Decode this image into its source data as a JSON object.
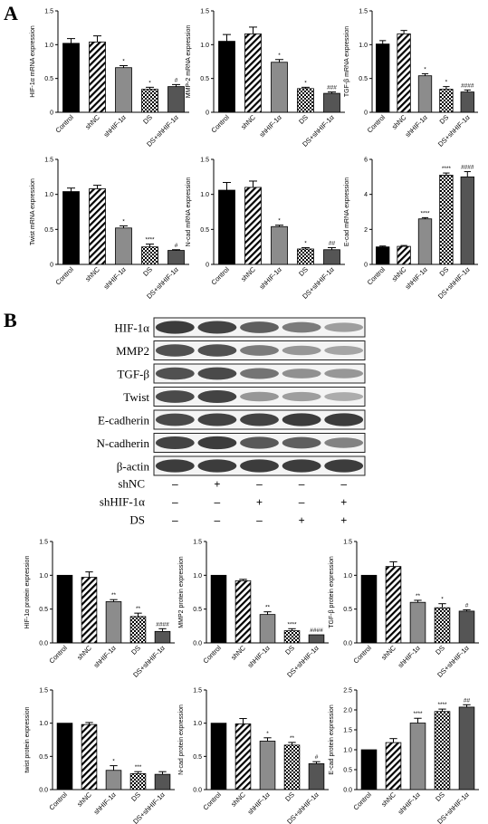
{
  "panels": {
    "a": "A",
    "b": "B"
  },
  "condition_labels": [
    "Control",
    "shNC",
    "shHIF-1α",
    "DS",
    "DS+shHIF-1α"
  ],
  "colors": {
    "control": "#000000",
    "shHIF": "#8c8c8c",
    "combo": "#555555",
    "grid": "#000000"
  },
  "western": {
    "bands": [
      "HIF-1α",
      "MMP2",
      "TGF-β",
      "Twist",
      "E-cadherin",
      "N-cadherin",
      "β-actin"
    ],
    "treatments": [
      {
        "name": "shNC",
        "marks": [
          "–",
          "+",
          "–",
          "–",
          "–"
        ]
      },
      {
        "name": "shHIF-1α",
        "marks": [
          "–",
          "–",
          "+",
          "–",
          "+"
        ]
      },
      {
        "name": "DS",
        "marks": [
          "–",
          "–",
          "–",
          "+",
          "+"
        ]
      }
    ]
  },
  "chart_data": [
    {
      "type": "bar",
      "ylabel": "HIF-1α mRNA expression",
      "ylim": [
        0,
        1.5
      ],
      "yticks": [
        0,
        0.5,
        1.0,
        1.5
      ],
      "categories": [
        "Control",
        "shNC",
        "shHIF-1α",
        "DS",
        "DS+shHIF-1α"
      ],
      "values": [
        1.02,
        1.04,
        0.66,
        0.34,
        0.38
      ],
      "errors": [
        0.07,
        0.09,
        0.03,
        0.03,
        0.03
      ],
      "annotations": [
        "",
        "",
        "*",
        "*",
        "#"
      ]
    },
    {
      "type": "bar",
      "ylabel": "MMP-2 mRNA expression",
      "ylim": [
        0,
        1.5
      ],
      "yticks": [
        0,
        0.5,
        1.0,
        1.5
      ],
      "categories": [
        "Control",
        "shNC",
        "shHIF-1α",
        "DS",
        "DS+shHIF-1α"
      ],
      "values": [
        1.05,
        1.16,
        0.74,
        0.35,
        0.28
      ],
      "errors": [
        0.1,
        0.1,
        0.04,
        0.02,
        0.02
      ],
      "annotations": [
        "",
        "",
        "*",
        "*",
        "###"
      ]
    },
    {
      "type": "bar",
      "ylabel": "TGF-β mRNA expression",
      "ylim": [
        0,
        1.5
      ],
      "yticks": [
        0,
        0.5,
        1.0,
        1.5
      ],
      "categories": [
        "Control",
        "shNC",
        "shHIF-1α",
        "DS",
        "DS+shHIF-1α"
      ],
      "values": [
        1.01,
        1.16,
        0.54,
        0.34,
        0.3
      ],
      "errors": [
        0.05,
        0.05,
        0.03,
        0.04,
        0.03
      ],
      "annotations": [
        "",
        "",
        "*",
        "*",
        "####"
      ]
    },
    {
      "type": "bar",
      "ylabel": "Twist mRNA expression",
      "ylim": [
        0,
        1.5
      ],
      "yticks": [
        0,
        0.5,
        1.0,
        1.5
      ],
      "categories": [
        "Control",
        "shNC",
        "shHIF-1α",
        "DS",
        "DS+shHIF-1α"
      ],
      "values": [
        1.04,
        1.08,
        0.52,
        0.25,
        0.2
      ],
      "errors": [
        0.05,
        0.05,
        0.03,
        0.04,
        0.01
      ],
      "annotations": [
        "",
        "",
        "*",
        "****",
        "#"
      ]
    },
    {
      "type": "bar",
      "ylabel": "N-cad mRNA expression",
      "ylim": [
        0,
        1.5
      ],
      "yticks": [
        0,
        0.5,
        1.0,
        1.5
      ],
      "categories": [
        "Control",
        "shNC",
        "shHIF-1α",
        "DS",
        "DS+shHIF-1α"
      ],
      "values": [
        1.06,
        1.1,
        0.54,
        0.22,
        0.21
      ],
      "errors": [
        0.11,
        0.09,
        0.02,
        0.02,
        0.03
      ],
      "annotations": [
        "",
        "",
        "*",
        "*",
        "##"
      ]
    },
    {
      "type": "bar",
      "ylabel": "E-cad mRNA expression",
      "ylim": [
        0,
        6
      ],
      "yticks": [
        0,
        2,
        4,
        6
      ],
      "categories": [
        "Control",
        "shNC",
        "shHIF-1α",
        "DS",
        "DS+shHIF-1α"
      ],
      "values": [
        1.0,
        1.03,
        2.6,
        5.1,
        5.0
      ],
      "errors": [
        0.05,
        0.05,
        0.07,
        0.12,
        0.3
      ],
      "annotations": [
        "",
        "",
        "****",
        "****",
        "####"
      ]
    },
    {
      "type": "bar",
      "ylabel": "HIF-1α protein expression",
      "ylim": [
        0,
        1.5
      ],
      "yticks": [
        0.0,
        0.5,
        1.0,
        1.5
      ],
      "categories": [
        "Control",
        "shNC",
        "shHIF-1α",
        "DS",
        "DS+shHIF-1α"
      ],
      "values": [
        1.0,
        0.97,
        0.61,
        0.39,
        0.17
      ],
      "errors": [
        0.0,
        0.08,
        0.03,
        0.05,
        0.04
      ],
      "annotations": [
        "",
        "",
        "**",
        "**",
        "####"
      ]
    },
    {
      "type": "bar",
      "ylabel": "MMP2 protein expression",
      "ylim": [
        0,
        1.5
      ],
      "yticks": [
        0.0,
        0.5,
        1.0,
        1.5
      ],
      "categories": [
        "Control",
        "shNC",
        "shHIF-1α",
        "DS",
        "DS+shHIF-1α"
      ],
      "values": [
        1.0,
        0.92,
        0.42,
        0.18,
        0.12
      ],
      "errors": [
        0.0,
        0.02,
        0.04,
        0.03,
        0.0
      ],
      "annotations": [
        "",
        "",
        "**",
        "****",
        "####"
      ]
    },
    {
      "type": "bar",
      "ylabel": "TGF-β protein expression",
      "ylim": [
        0,
        1.5
      ],
      "yticks": [
        0.0,
        0.5,
        1.0,
        1.5
      ],
      "categories": [
        "Control",
        "shNC",
        "shHIF-1α",
        "DS",
        "DS+shHIF-1α"
      ],
      "values": [
        1.0,
        1.13,
        0.6,
        0.52,
        0.47
      ],
      "errors": [
        0.0,
        0.07,
        0.03,
        0.06,
        0.02
      ],
      "annotations": [
        "",
        "",
        "**",
        "*",
        "#"
      ]
    },
    {
      "type": "bar",
      "ylabel": "twist protein expression",
      "ylim": [
        0,
        1.5
      ],
      "yticks": [
        0.0,
        0.5,
        1.0,
        1.5
      ],
      "categories": [
        "Control",
        "shNC",
        "shHIF-1α",
        "DS",
        "DS+shHIF-1α"
      ],
      "values": [
        1.0,
        0.98,
        0.29,
        0.24,
        0.23
      ],
      "errors": [
        0.0,
        0.03,
        0.07,
        0.03,
        0.04
      ],
      "annotations": [
        "",
        "",
        "*",
        "***",
        ""
      ]
    },
    {
      "type": "bar",
      "ylabel": "N-cad protein expression",
      "ylim": [
        0,
        1.5
      ],
      "yticks": [
        0.0,
        0.5,
        1.0,
        1.5
      ],
      "categories": [
        "Control",
        "shNC",
        "shHIF-1α",
        "DS",
        "DS+shHIF-1α"
      ],
      "values": [
        1.0,
        0.99,
        0.73,
        0.67,
        0.39
      ],
      "errors": [
        0.0,
        0.08,
        0.05,
        0.04,
        0.03
      ],
      "annotations": [
        "",
        "",
        "*",
        "**",
        "#"
      ]
    },
    {
      "type": "bar",
      "ylabel": "E-cad protein expression",
      "ylim": [
        0,
        2.5
      ],
      "yticks": [
        0.0,
        0.5,
        1.0,
        1.5,
        2.0,
        2.5
      ],
      "categories": [
        "Control",
        "shNC",
        "shHIF-1α",
        "DS",
        "DS+shHIF-1α"
      ],
      "values": [
        1.0,
        1.18,
        1.67,
        1.96,
        2.07
      ],
      "errors": [
        0.0,
        0.1,
        0.12,
        0.06,
        0.06
      ],
      "annotations": [
        "",
        "",
        "****",
        "****",
        "##"
      ]
    }
  ]
}
